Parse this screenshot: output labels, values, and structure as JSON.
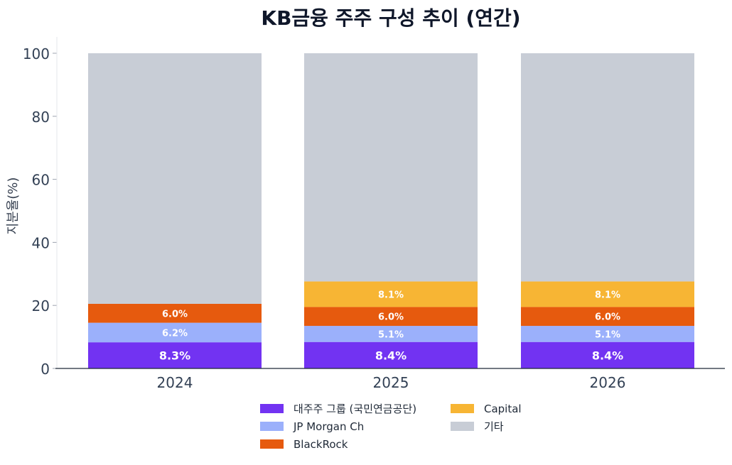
{
  "chart_data": {
    "type": "bar",
    "stacked": true,
    "title": "KB금융 주주 구성 추이 (연간)",
    "ylabel": "지분율(%)",
    "xlabel": "",
    "ylim": [
      0,
      100
    ],
    "yticks": [
      0,
      20,
      40,
      60,
      80,
      100
    ],
    "categories": [
      "2024",
      "2025",
      "2026"
    ],
    "series": [
      {
        "name": "대주주 그룹 (국민연금공단)",
        "color": "#7233f2",
        "values": [
          8.3,
          8.4,
          8.4
        ],
        "labels": [
          "8.3%",
          "8.4%",
          "8.4%"
        ]
      },
      {
        "name": "JP Morgan Ch",
        "color": "#9bb0fb",
        "values": [
          6.2,
          5.1,
          5.1
        ],
        "labels": [
          "6.2%",
          "5.1%",
          "5.1%"
        ]
      },
      {
        "name": "BlackRock",
        "color": "#e65a0e",
        "values": [
          6.0,
          6.0,
          6.0
        ],
        "labels": [
          "6.0%",
          "6.0%",
          "6.0%"
        ]
      },
      {
        "name": "Capital",
        "color": "#f7b534",
        "values": [
          0,
          8.1,
          8.1
        ],
        "labels": [
          "",
          "8.1%",
          "8.1%"
        ]
      },
      {
        "name": "기타",
        "color": "#c8cdd6",
        "values": [
          79.5,
          72.4,
          72.4
        ],
        "labels": [
          "",
          "",
          ""
        ]
      }
    ],
    "legend_position": "bottom",
    "grid": false
  }
}
